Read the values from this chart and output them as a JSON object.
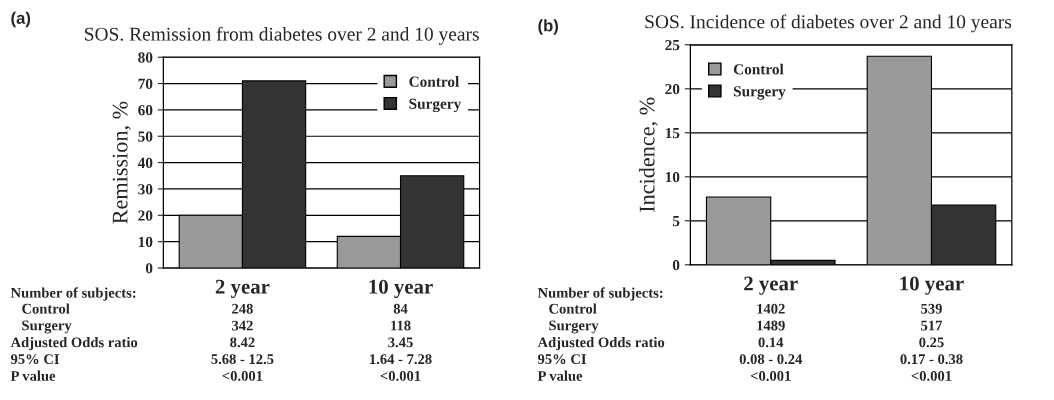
{
  "chart_data": [
    {
      "type": "bar",
      "title": "SOS. Remission from diabetes over 2 and 10 years",
      "ylabel": "Remission, %",
      "categories": [
        "2 year",
        "10 year"
      ],
      "series": [
        {
          "name": "Control",
          "color": "#999999",
          "values": [
            20,
            12
          ]
        },
        {
          "name": "Surgery",
          "color": "#333333",
          "values": [
            71,
            35
          ]
        }
      ],
      "ylim": [
        0,
        80
      ],
      "yticks": [
        0,
        10,
        20,
        30,
        40,
        50,
        60,
        70,
        80
      ],
      "grid": "y",
      "legend": "top right",
      "annotations": [
        "(a)",
        "Number of subjects:",
        "   Control",
        "248",
        "84",
        "   Surgery",
        "342",
        "118",
        "Adjusted Odds ratio",
        "8.42",
        "3.45",
        "95% CI",
        "5.68 - 12.5",
        "1.64 - 7.28",
        "P value",
        "<0.001",
        "<0.001"
      ]
    },
    {
      "type": "bar",
      "title": "SOS. Incidence of diabetes over 2 and 10 years",
      "ylabel": "Incidence, %",
      "categories": [
        "2 year",
        "10 year"
      ],
      "series": [
        {
          "name": "Control",
          "color": "#999999",
          "values": [
            7.7,
            23.7
          ]
        },
        {
          "name": "Surgery",
          "color": "#333333",
          "values": [
            0.5,
            6.8
          ]
        }
      ],
      "ylim": [
        0,
        25
      ],
      "yticks": [
        0,
        5,
        10,
        15,
        20,
        25
      ],
      "grid": "y",
      "legend": "top left",
      "annotations": [
        "(b)",
        "Number of subjects:",
        "   Control",
        "1402",
        "539",
        "   Surgery",
        "1489",
        "517",
        "Adjusted Odds ratio",
        "0.14",
        "0.25",
        "95% CI",
        "0.08 - 0.24",
        "0.17 - 0.38",
        "P value",
        "<0.001",
        "<0.001"
      ]
    }
  ]
}
